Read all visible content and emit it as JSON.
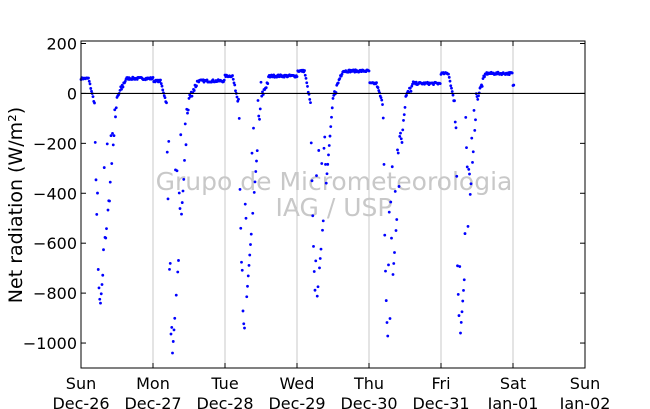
{
  "chart_data": {
    "type": "scatter",
    "title": "",
    "xlabel": "",
    "ylabel": "Net radiation (W/m²)",
    "ylim": [
      -1100,
      210
    ],
    "y_ticks": [
      200,
      0,
      -200,
      -400,
      -600,
      -800,
      -1000
    ],
    "y_tick_labels": [
      "200",
      "0",
      "−200",
      "−400",
      "−600",
      "−800",
      "−1000"
    ],
    "x_range_days": [
      0,
      7
    ],
    "x_ticks": [
      {
        "day": 0,
        "weekday": "Sun",
        "date": "Dec-26"
      },
      {
        "day": 1,
        "weekday": "Mon",
        "date": "Dec-27"
      },
      {
        "day": 2,
        "weekday": "Tue",
        "date": "Dec-28"
      },
      {
        "day": 3,
        "weekday": "Wed",
        "date": "Dec-29"
      },
      {
        "day": 4,
        "weekday": "Thu",
        "date": "Dec-30"
      },
      {
        "day": 5,
        "weekday": "Fri",
        "date": "Dec-31"
      },
      {
        "day": 6,
        "weekday": "Sat",
        "date": "Jan-01"
      },
      {
        "day": 7,
        "weekday": "Sun",
        "date": "Jan-02"
      }
    ],
    "grid": "vertical",
    "zero_line": true,
    "watermark": [
      "Grupo de Micrometeorologia",
      "IAG / USP"
    ],
    "point_color": "#0000ff",
    "series": [
      {
        "name": "",
        "day_profiles": [
          {
            "day": 0,
            "night": 60,
            "peak": -840,
            "scatter_frac": 0.35
          },
          {
            "day": 1,
            "night": 50,
            "peak": -1040,
            "scatter_frac": 0.55
          },
          {
            "day": 2,
            "night": 70,
            "peak": -940,
            "scatter_frac": 0.6
          },
          {
            "day": 3,
            "night": 90,
            "peak": -850,
            "scatter_frac": 0.3
          },
          {
            "day": 4,
            "night": 40,
            "peak": -990,
            "scatter_frac": 0.55
          },
          {
            "day": 5,
            "night": 80,
            "peak": -960,
            "scatter_frac": 0.45
          }
        ],
        "data_end_day": 6.02,
        "data_end_value": 30
      }
    ]
  }
}
